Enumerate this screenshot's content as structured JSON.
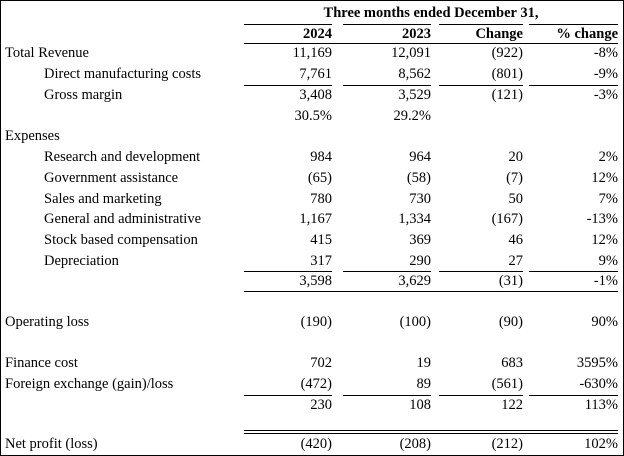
{
  "header": {
    "title": "Three months ended December 31,",
    "columns": [
      "2024",
      "2023",
      "Change",
      "% change"
    ]
  },
  "rows": [
    {
      "label": "Total Revenue",
      "v2024": "11,169",
      "v2023": "12,091",
      "change": "(922)",
      "pct": "-8%"
    },
    {
      "label": "Direct manufacturing costs",
      "v2024": "7,761",
      "v2023": "8,562",
      "change": "(801)",
      "pct": "-9%"
    },
    {
      "label": "Gross margin",
      "v2024": "3,408",
      "v2023": "3,529",
      "change": "(121)",
      "pct": "-3%"
    },
    {
      "label": "",
      "v2024": "30.5%",
      "v2023": "29.2%",
      "change": "",
      "pct": ""
    },
    {
      "label": "Expenses",
      "v2024": "",
      "v2023": "",
      "change": "",
      "pct": ""
    },
    {
      "label": "Research and development",
      "v2024": "984",
      "v2023": "964",
      "change": "20",
      "pct": "2%"
    },
    {
      "label": "Government assistance",
      "v2024": "(65)",
      "v2023": "(58)",
      "change": "(7)",
      "pct": "12%"
    },
    {
      "label": "Sales and marketing",
      "v2024": "780",
      "v2023": "730",
      "change": "50",
      "pct": "7%"
    },
    {
      "label": "General and administrative",
      "v2024": "1,167",
      "v2023": "1,334",
      "change": "(167)",
      "pct": "-13%"
    },
    {
      "label": "Stock based compensation",
      "v2024": "415",
      "v2023": "369",
      "change": "46",
      "pct": "12%"
    },
    {
      "label": "Depreciation",
      "v2024": "317",
      "v2023": "290",
      "change": "27",
      "pct": "9%"
    },
    {
      "label": "",
      "v2024": "3,598",
      "v2023": "3,629",
      "change": "(31)",
      "pct": "-1%"
    },
    {
      "label": "Operating loss",
      "v2024": "(190)",
      "v2023": "(100)",
      "change": "(90)",
      "pct": "90%"
    },
    {
      "label": "Finance cost",
      "v2024": "702",
      "v2023": "19",
      "change": "683",
      "pct": "3595%"
    },
    {
      "label": "Foreign exchange (gain)/loss",
      "v2024": "(472)",
      "v2023": "89",
      "change": "(561)",
      "pct": "-630%"
    },
    {
      "label": "",
      "v2024": "230",
      "v2023": "108",
      "change": "122",
      "pct": "113%"
    },
    {
      "label": "Net profit (loss)",
      "v2024": "(420)",
      "v2023": "(208)",
      "change": "(212)",
      "pct": "102%"
    }
  ]
}
